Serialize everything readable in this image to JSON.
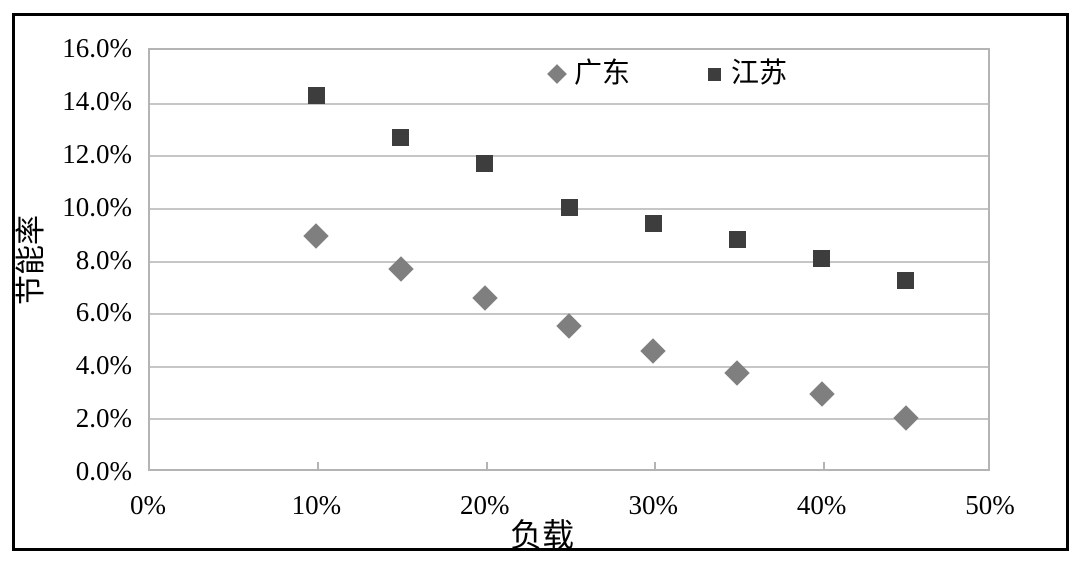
{
  "chart_data": {
    "type": "scatter",
    "title": "",
    "xlabel": "负载",
    "ylabel": "节能率",
    "xlim": [
      0,
      50
    ],
    "ylim": [
      0,
      16
    ],
    "x_ticks": [
      "0%",
      "10%",
      "20%",
      "30%",
      "40%",
      "50%"
    ],
    "y_ticks": [
      "0.0%",
      "2.0%",
      "4.0%",
      "6.0%",
      "8.0%",
      "10.0%",
      "12.0%",
      "14.0%",
      "16.0%"
    ],
    "grid": "horizontal",
    "legend_position": "top-center-inside",
    "colors": {
      "guangdong_marker": "#7f7f7f",
      "jiangsu_marker": "#3d3d3d",
      "gridline": "#c6c6c6",
      "axis_line": "#b4b4b4",
      "frame_border": "#000000",
      "text": "#000000"
    },
    "series": [
      {
        "name": "广东",
        "marker": "diamond",
        "color": "#7f7f7f",
        "x": [
          10,
          15,
          20,
          25,
          30,
          35,
          40,
          45
        ],
        "y": [
          8.9,
          7.65,
          6.55,
          5.5,
          4.55,
          3.7,
          2.9,
          2.0
        ]
      },
      {
        "name": "江苏",
        "marker": "square",
        "color": "#3d3d3d",
        "x": [
          10,
          15,
          20,
          25,
          30,
          35,
          40,
          45
        ],
        "y": [
          14.2,
          12.6,
          11.65,
          9.95,
          9.35,
          8.75,
          8.05,
          7.2
        ]
      }
    ]
  }
}
